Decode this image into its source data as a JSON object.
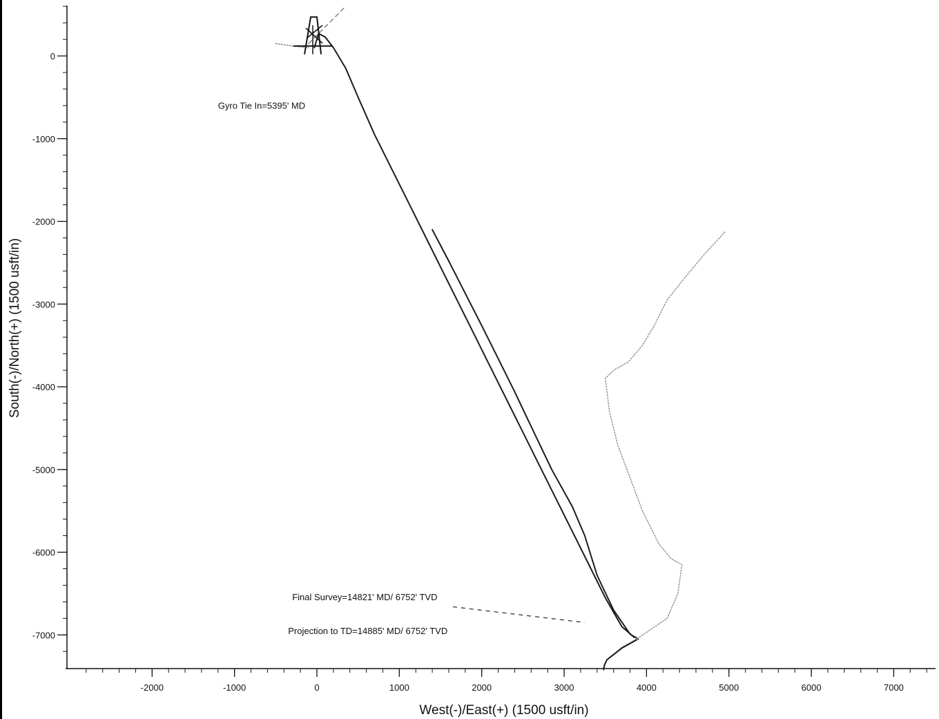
{
  "chart_data": {
    "type": "line",
    "xlabel": "West(-)/East(+) (1500 usft/in)",
    "ylabel": "South(-)/North(+) (1500 usft/in)",
    "xlim": [
      -2800,
      7600
    ],
    "ylim": [
      -7450,
      600
    ],
    "x_ticks": [
      -2000,
      -1000,
      0,
      1000,
      2000,
      3000,
      4000,
      5000,
      6000,
      7000
    ],
    "y_ticks": [
      0,
      -1000,
      -2000,
      -3000,
      -4000,
      -5000,
      -6000,
      -7000
    ],
    "x_minor_step": 200,
    "y_minor_step": 200,
    "grid": false,
    "series": [
      {
        "color": "#1a1a1a",
        "style": "solid",
        "x": [
          -30,
          20,
          100,
          200,
          350,
          500,
          700,
          900,
          1100,
          1300,
          1500,
          1700,
          1900,
          2100,
          2300,
          2500,
          2700,
          2900,
          3100,
          3300,
          3500,
          3700,
          3850
        ],
        "y": [
          100,
          270,
          230,
          100,
          -150,
          -500,
          -950,
          -1350,
          -1750,
          -2150,
          -2550,
          -2950,
          -3350,
          -3750,
          -4150,
          -4550,
          -4950,
          -5350,
          -5750,
          -6150,
          -6550,
          -6900,
          -7030
        ]
      },
      {
        "color": "#1a1a1a",
        "style": "solid",
        "x": [
          1400,
          1600,
          1800,
          2000,
          2200,
          2400,
          2600,
          2850,
          3100,
          3250,
          3400,
          3600,
          3800,
          3900
        ],
        "y": [
          -2100,
          -2480,
          -2870,
          -3260,
          -3660,
          -4060,
          -4480,
          -5000,
          -5450,
          -5800,
          -6280,
          -6700,
          -6990,
          -7050
        ]
      },
      {
        "color": "#9a9a9a",
        "style": "dotted",
        "x": [
          4950,
          4700,
          4450,
          4250,
          4100,
          3950,
          3780,
          3600,
          3500,
          3550,
          3650,
          3800,
          3950,
          4150,
          4300,
          4430,
          4380,
          4250,
          3880,
          3700,
          3520,
          3480
        ],
        "y": [
          -2130,
          -2400,
          -2700,
          -2950,
          -3250,
          -3500,
          -3700,
          -3800,
          -3900,
          -4300,
          -4700,
          -5100,
          -5500,
          -5900,
          -6080,
          -6150,
          -6500,
          -6800,
          -7050,
          -7150,
          -7300,
          -7400
        ]
      },
      {
        "color": "#1a1a1a",
        "style": "solid",
        "x": [
          3880,
          3700,
          3520,
          3490,
          3480
        ],
        "y": [
          -7060,
          -7160,
          -7300,
          -7360,
          -7420
        ]
      },
      {
        "color": "#8a8a8a",
        "style": "dashed",
        "x": [
          -100,
          100,
          330
        ],
        "y": [
          150,
          350,
          580
        ]
      },
      {
        "color": "#8a8a8a",
        "style": "dotted",
        "x": [
          -500,
          -300,
          -100
        ],
        "y": [
          150,
          120,
          100
        ]
      }
    ],
    "annotations": [
      {
        "text": "Gyro Tie In=5395' MD",
        "x": -1200,
        "y": -640
      },
      {
        "text": "Final Survey=14821' MD/ 6752' TVD",
        "x": -300,
        "y": -6580
      },
      {
        "text": "Projection to TD=14885' MD/ 6752' TVD",
        "x": -350,
        "y": -6990
      }
    ],
    "leaders": [
      {
        "x": [
          1650,
          3250
        ],
        "y": [
          -6660,
          -6850
        ]
      }
    ]
  }
}
